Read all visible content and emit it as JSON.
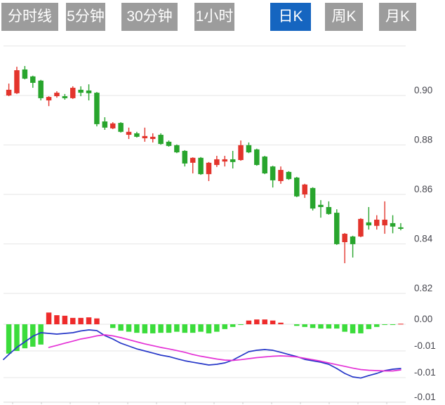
{
  "tabs": {
    "items": [
      {
        "label": "分时线",
        "active": false
      },
      {
        "label": "5分钟",
        "active": false
      },
      {
        "label": "30分钟",
        "active": false
      },
      {
        "label": "1小时",
        "active": false
      },
      {
        "label": "日K",
        "active": true
      },
      {
        "label": "周K",
        "active": false
      },
      {
        "label": "月K",
        "active": false
      }
    ]
  },
  "colors": {
    "up": "#e3342c",
    "down": "#28a52d",
    "macd_up": "#ee2b2b",
    "macd_down": "#3bdc3b",
    "dif_line": "#2637c8",
    "dea_line": "#e431d6",
    "tab_bg": "#9c9c9c",
    "tab_active_bg": "#1565c0",
    "grid": "#e6e6e6",
    "axis_line": "#d8d8d8",
    "axis_text": "#45454d"
  },
  "chart_data": {
    "type": "candlestick+macd",
    "title": "",
    "candle_format": [
      "open",
      "close",
      "high",
      "low"
    ],
    "price_panel": {
      "ylim": [
        0.818,
        0.922
      ],
      "legend": "none",
      "grid": true,
      "gridlines": [
        {
          "value": 0.92,
          "label": ""
        },
        {
          "value": 0.9,
          "label": "0.90"
        },
        {
          "value": 0.88,
          "label": "0.88"
        },
        {
          "value": 0.86,
          "label": "0.86"
        },
        {
          "value": 0.84,
          "label": "0.84"
        },
        {
          "value": 0.82,
          "label": "0.82"
        }
      ],
      "candles": [
        [
          0.9,
          0.9023,
          0.9048,
          0.8997
        ],
        [
          0.9009,
          0.9102,
          0.9116,
          0.9006
        ],
        [
          0.9105,
          0.9068,
          0.9119,
          0.9065
        ],
        [
          0.9077,
          0.9051,
          0.908,
          0.9031
        ],
        [
          0.906,
          0.8989,
          0.9063,
          0.898
        ],
        [
          0.898,
          0.8994,
          0.8997,
          0.8957
        ],
        [
          0.8997,
          0.9011,
          0.9017,
          0.8991
        ],
        [
          0.8997,
          0.8989,
          0.9006,
          0.8983
        ],
        [
          0.8989,
          0.9031,
          0.9037,
          0.8986
        ],
        [
          0.9023,
          0.9011,
          0.9037,
          0.8997
        ],
        [
          0.902,
          0.9009,
          0.9045,
          0.898
        ],
        [
          0.9011,
          0.8884,
          0.9014,
          0.8875
        ],
        [
          0.8895,
          0.887,
          0.8912,
          0.8861
        ],
        [
          0.8867,
          0.8887,
          0.8892,
          0.8864
        ],
        [
          0.8889,
          0.8853,
          0.8892,
          0.885
        ],
        [
          0.8841,
          0.8853,
          0.887,
          0.8824
        ],
        [
          0.8847,
          0.8833,
          0.8853,
          0.883
        ],
        [
          0.8827,
          0.8836,
          0.887,
          0.8813
        ],
        [
          0.8824,
          0.8833,
          0.8847,
          0.881
        ],
        [
          0.8841,
          0.8804,
          0.8847,
          0.8801
        ],
        [
          0.8813,
          0.8796,
          0.8818,
          0.8793
        ],
        [
          0.8799,
          0.877,
          0.8802,
          0.8767
        ],
        [
          0.8776,
          0.8725,
          0.8779,
          0.8713
        ],
        [
          0.8728,
          0.8748,
          0.875,
          0.8685
        ],
        [
          0.8748,
          0.8682,
          0.8751,
          0.8679
        ],
        [
          0.8682,
          0.8728,
          0.8731,
          0.8654
        ],
        [
          0.8719,
          0.8742,
          0.8756,
          0.8711
        ],
        [
          0.8733,
          0.8742,
          0.8756,
          0.8713
        ],
        [
          0.8742,
          0.8731,
          0.8776,
          0.8705
        ],
        [
          0.8739,
          0.8799,
          0.8818,
          0.8736
        ],
        [
          0.8799,
          0.877,
          0.881,
          0.8767
        ],
        [
          0.8782,
          0.8719,
          0.8785,
          0.8716
        ],
        [
          0.8753,
          0.8685,
          0.8756,
          0.8682
        ],
        [
          0.8713,
          0.8657,
          0.8716,
          0.8628
        ],
        [
          0.8654,
          0.8699,
          0.8713,
          0.8643
        ],
        [
          0.8691,
          0.8662,
          0.8694,
          0.8659
        ],
        [
          0.8668,
          0.8592,
          0.8671,
          0.8589
        ],
        [
          0.86,
          0.864,
          0.8643,
          0.8586
        ],
        [
          0.8626,
          0.8543,
          0.8629,
          0.8535
        ],
        [
          0.8558,
          0.8549,
          0.8577,
          0.8506
        ],
        [
          0.8549,
          0.8521,
          0.8572,
          0.8518
        ],
        [
          0.8526,
          0.8399,
          0.854,
          0.8396
        ],
        [
          0.8407,
          0.8441,
          0.8444,
          0.8322
        ],
        [
          0.843,
          0.8399,
          0.8433,
          0.8345
        ],
        [
          0.843,
          0.8501,
          0.8504,
          0.8427
        ],
        [
          0.8487,
          0.8475,
          0.8549,
          0.8458
        ],
        [
          0.8473,
          0.8498,
          0.8516,
          0.8458
        ],
        [
          0.8475,
          0.8498,
          0.8572,
          0.8441
        ],
        [
          0.8484,
          0.847,
          0.8516,
          0.8443
        ],
        [
          0.8467,
          0.8461,
          0.8484,
          0.8455
        ]
      ]
    },
    "macd_panel": {
      "gridlines": [
        {
          "value": 0,
          "label": "0.00"
        },
        {
          "value": -0.005,
          "label": "-0.01"
        },
        {
          "value": -0.01,
          "label": "-0.01"
        },
        {
          "value": -0.0146,
          "label": "-0.01",
          "is_axis": true
        }
      ],
      "histogram": [
        -0.0055,
        -0.005,
        -0.0045,
        -0.0042,
        -0.0038,
        0.0022,
        0.0017,
        0.0016,
        0.0012,
        0.0012,
        0.0013,
        0.0011,
        0.0,
        -0.0007,
        -0.0012,
        -0.0014,
        -0.0016,
        -0.0017,
        -0.0017,
        -0.0016,
        -0.0016,
        -0.0014,
        -0.0016,
        -0.0016,
        -0.0014,
        -0.0017,
        -0.0014,
        -0.0009,
        -0.0005,
        -0.0001,
        0.0007,
        0.0009,
        0.0009,
        0.0007,
        0.0003,
        0.0,
        -0.0003,
        -0.0005,
        -0.0007,
        -0.0008,
        -0.0008,
        -0.0008,
        -0.0014,
        -0.0017,
        -0.0017,
        -0.0009,
        -0.0005,
        -0.0001,
        -0.0001,
        0.0001
      ],
      "dif_edge": -0.0066,
      "dif": [
        -0.00566,
        -0.00434,
        -0.00329,
        -0.00224,
        -0.00158,
        -0.00171,
        -0.00184,
        -0.00171,
        -0.00158,
        -0.00125,
        -0.00105,
        -0.00118,
        -0.00211,
        -0.00276,
        -0.00355,
        -0.00408,
        -0.00461,
        -0.005,
        -0.00539,
        -0.00579,
        -0.00605,
        -0.00645,
        -0.00684,
        -0.00711,
        -0.00737,
        -0.00763,
        -0.0075,
        -0.00724,
        -0.00671,
        -0.00592,
        -0.00513,
        -0.00487,
        -0.00474,
        -0.00487,
        -0.00526,
        -0.00566,
        -0.00605,
        -0.00658,
        -0.00684,
        -0.00711,
        -0.0075,
        -0.00829,
        -0.00921,
        -0.00987,
        -0.01007,
        -0.00961,
        -0.00921,
        -0.00868,
        -0.00842,
        -0.00829
      ],
      "dea": [
        null,
        null,
        null,
        null,
        null,
        -0.00434,
        -0.00395,
        -0.00355,
        -0.00316,
        -0.00276,
        -0.0025,
        -0.00217,
        -0.00197,
        -0.00217,
        -0.0025,
        -0.00289,
        -0.00329,
        -0.00368,
        -0.00401,
        -0.00434,
        -0.00461,
        -0.00493,
        -0.00526,
        -0.00566,
        -0.00599,
        -0.00625,
        -0.00651,
        -0.00671,
        -0.00678,
        -0.00664,
        -0.00645,
        -0.00625,
        -0.00612,
        -0.00599,
        -0.00592,
        -0.00599,
        -0.00612,
        -0.00638,
        -0.00664,
        -0.00691,
        -0.00724,
        -0.00757,
        -0.00789,
        -0.00822,
        -0.00849,
        -0.00862,
        -0.00868,
        -0.00875,
        -0.00875,
        -0.00855
      ]
    }
  }
}
